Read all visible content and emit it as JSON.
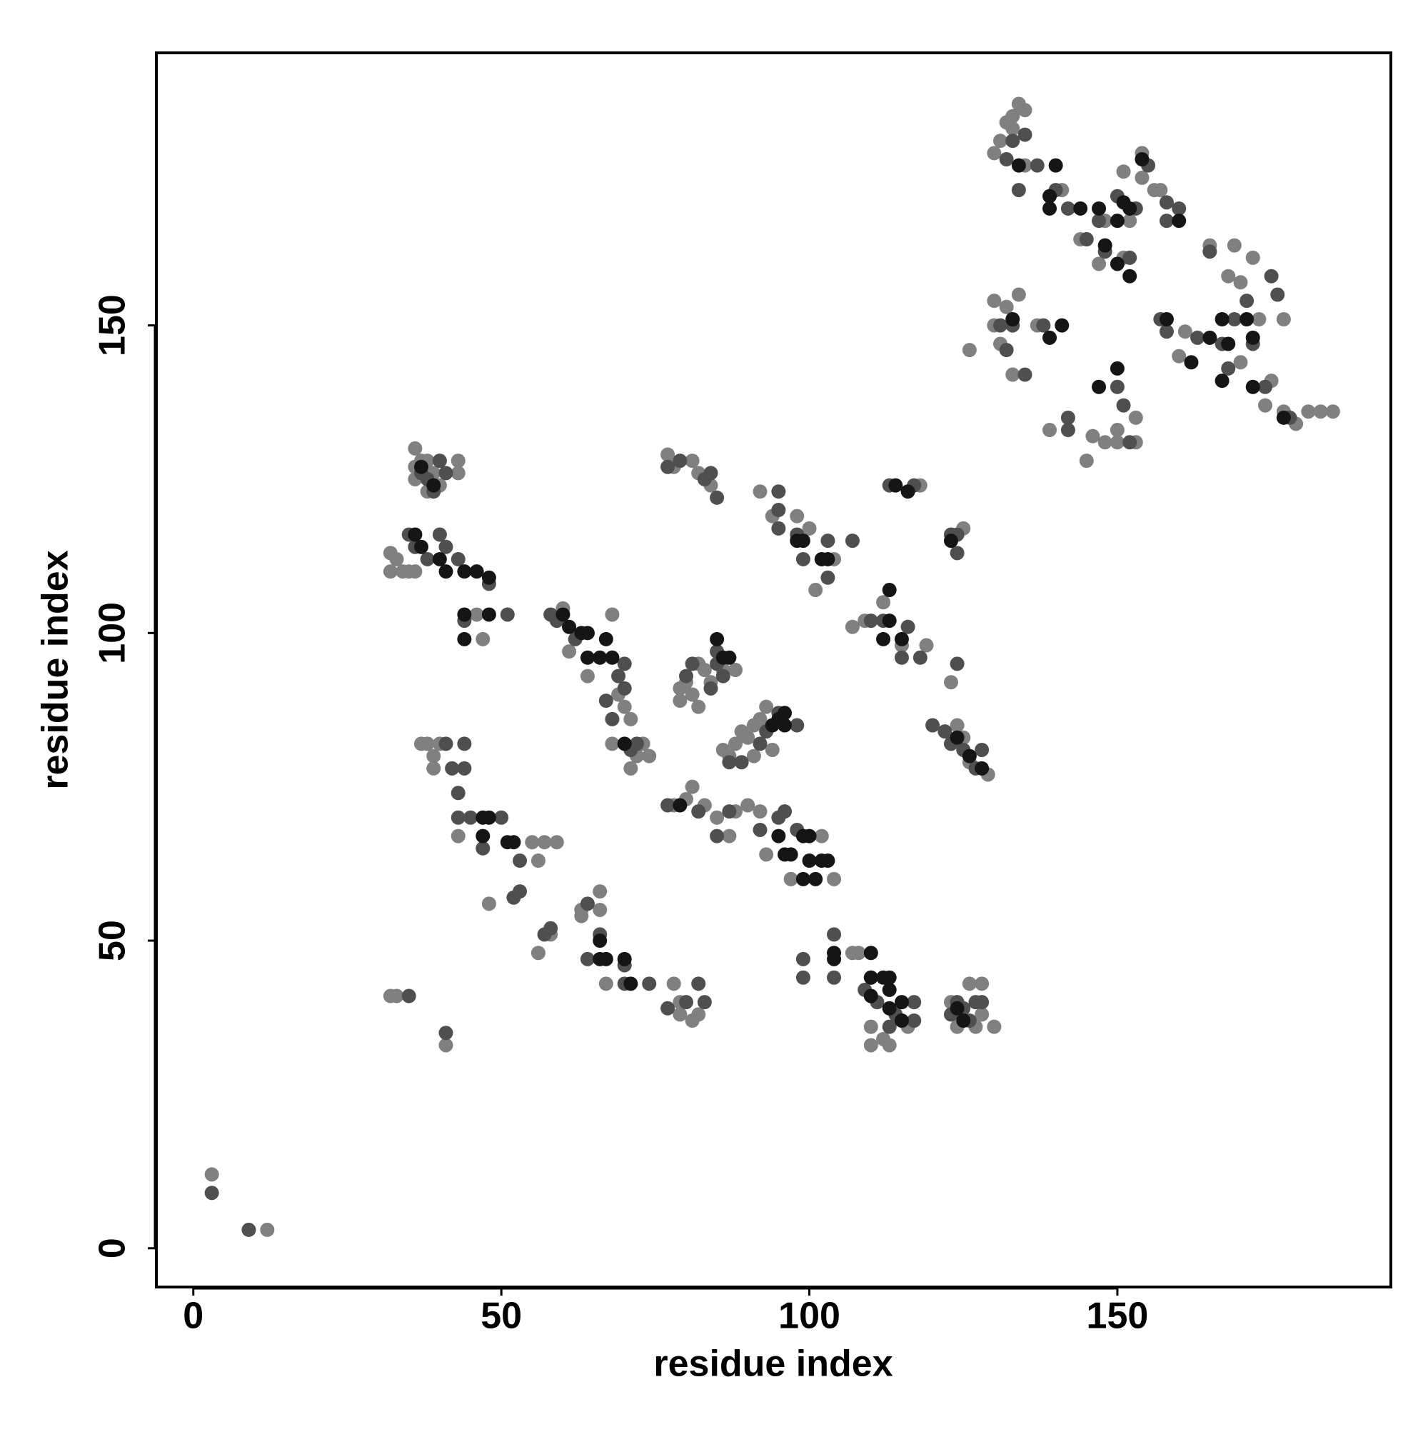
{
  "chart_data": {
    "type": "scatter",
    "xlabel": "residue index",
    "ylabel": "residue index",
    "xlim": [
      -6,
      194.4
    ],
    "ylim": [
      -6.3,
      194.3
    ],
    "xticks": [
      0,
      50,
      100,
      150
    ],
    "yticks": [
      0,
      50,
      100,
      150
    ],
    "grid": false,
    "series": [
      {
        "color": "#808080",
        "x": [
          3,
          12,
          36,
          36,
          36,
          37,
          38,
          39,
          40,
          43,
          43,
          38,
          32,
          32,
          33,
          34,
          35,
          36,
          46,
          47,
          37,
          38,
          39,
          40,
          39,
          43,
          55,
          57,
          59,
          56,
          48,
          56,
          58,
          63,
          63,
          66,
          66,
          67,
          78,
          79,
          81,
          82,
          79,
          32,
          33,
          41,
          60,
          61,
          64,
          68,
          68,
          69,
          70,
          71,
          72,
          73,
          74,
          71,
          79,
          79,
          80,
          81,
          82,
          82,
          83,
          84,
          86,
          88,
          86,
          87,
          88,
          89,
          90,
          91,
          92,
          93,
          94,
          91,
          78,
          80,
          81,
          83,
          85,
          87,
          88,
          90,
          92,
          93,
          97,
          104,
          102,
          107,
          108,
          110,
          110,
          110,
          112,
          113,
          116,
          123,
          124,
          126,
          127,
          128,
          128,
          130,
          92,
          94,
          98,
          100,
          101,
          104,
          77,
          78,
          81,
          82,
          84,
          118,
          125,
          107,
          109,
          112,
          115,
          119,
          123,
          124,
          125,
          126,
          129,
          130,
          130,
          131,
          132,
          133,
          134,
          126,
          137,
          139,
          145,
          146,
          148,
          150,
          150,
          153,
          153,
          130,
          131,
          132,
          133,
          134,
          135,
          133,
          135,
          141,
          144,
          147,
          148,
          151,
          151,
          152,
          154,
          156,
          157,
          154,
          160,
          161,
          165,
          168,
          169,
          170,
          172,
          170,
          173,
          177,
          177,
          179,
          181,
          183,
          185,
          174,
          175
        ],
        "values": [
          12,
          3,
          130,
          127,
          125,
          128,
          128,
          126,
          124,
          128,
          126,
          123,
          113,
          110,
          112,
          110,
          110,
          110,
          103,
          99,
          82,
          82,
          80,
          82,
          78,
          67,
          66,
          66,
          66,
          63,
          56,
          48,
          51,
          55,
          54,
          58,
          55,
          43,
          43,
          40,
          37,
          38,
          38,
          41,
          41,
          33,
          104,
          97,
          93,
          103,
          82,
          90,
          88,
          86,
          80,
          82,
          80,
          78,
          91,
          89,
          92,
          90,
          88,
          95,
          94,
          92,
          94,
          94,
          81,
          80,
          82,
          84,
          83,
          85,
          86,
          88,
          81,
          80,
          72,
          73,
          75,
          72,
          70,
          67,
          71,
          72,
          71,
          64,
          60,
          60,
          67,
          48,
          48,
          44,
          36,
          33,
          34,
          33,
          36,
          40,
          36,
          43,
          36,
          43,
          38,
          36,
          123,
          119,
          119,
          117,
          107,
          112,
          129,
          127,
          128,
          126,
          124,
          124,
          117,
          101,
          102,
          105,
          98,
          98,
          92,
          85,
          83,
          79,
          77,
          154,
          150,
          147,
          153,
          142,
          155,
          146,
          150,
          133,
          128,
          132,
          131,
          131,
          133,
          135,
          131,
          178,
          180,
          183,
          184,
          186,
          185,
          182,
          176,
          172,
          164,
          160,
          167,
          175,
          161,
          167,
          174,
          172,
          172,
          178,
          145,
          149,
          163,
          158,
          163,
          157,
          161,
          144,
          151,
          151,
          136,
          134,
          136,
          136,
          136,
          137,
          141
        ]
      },
      {
        "color": "#4f4f4f",
        "x": [
          3,
          9,
          37,
          38,
          39,
          40,
          41,
          35,
          36,
          38,
          40,
          41,
          43,
          48,
          44,
          51,
          41,
          44,
          42,
          44,
          43,
          43,
          45,
          47,
          50,
          53,
          53,
          52,
          57,
          58,
          64,
          64,
          66,
          70,
          70,
          74,
          77,
          80,
          82,
          83,
          35,
          41,
          58,
          59,
          62,
          67,
          68,
          69,
          70,
          70,
          71,
          72,
          80,
          81,
          84,
          86,
          85,
          85,
          87,
          89,
          92,
          93,
          95,
          98,
          77,
          82,
          85,
          87,
          92,
          95,
          98,
          96,
          99,
          99,
          104,
          104,
          109,
          111,
          113,
          114,
          117,
          117,
          123,
          124,
          125,
          126,
          127,
          128,
          95,
          95,
          95,
          98,
          99,
          103,
          103,
          107,
          77,
          79,
          84,
          85,
          83,
          113,
          117,
          123,
          124,
          124,
          110,
          112,
          115,
          116,
          118,
          124,
          120,
          122,
          123,
          125,
          127,
          128,
          131,
          133,
          135,
          138,
          132,
          142,
          142,
          150,
          151,
          152,
          132,
          133,
          135,
          134,
          137,
          140,
          142,
          145,
          147,
          148,
          150,
          152,
          153,
          155,
          158,
          160,
          158,
          157,
          158,
          163,
          165,
          167,
          168,
          169,
          171,
          175,
          176,
          172,
          174,
          178
        ],
        "values": [
          9,
          3,
          126,
          125,
          123,
          128,
          126,
          116,
          114,
          112,
          116,
          114,
          112,
          108,
          102,
          103,
          82,
          82,
          78,
          78,
          74,
          70,
          70,
          65,
          70,
          63,
          58,
          57,
          51,
          52,
          56,
          47,
          51,
          46,
          43,
          43,
          39,
          40,
          43,
          40,
          41,
          35,
          103,
          102,
          99,
          89,
          86,
          93,
          95,
          91,
          81,
          82,
          93,
          95,
          91,
          93,
          95,
          97,
          79,
          79,
          82,
          84,
          87,
          85,
          72,
          71,
          67,
          71,
          68,
          70,
          68,
          71,
          47,
          44,
          51,
          44,
          42,
          40,
          36,
          38,
          40,
          37,
          38,
          40,
          39,
          37,
          40,
          40,
          123,
          120,
          117,
          116,
          112,
          115,
          109,
          115,
          127,
          128,
          126,
          122,
          125,
          124,
          124,
          116,
          116,
          113,
          102,
          102,
          96,
          101,
          96,
          95,
          85,
          84,
          82,
          81,
          78,
          81,
          150,
          150,
          142,
          150,
          146,
          135,
          133,
          140,
          137,
          131,
          177,
          180,
          181,
          172,
          176,
          172,
          169,
          164,
          167,
          162,
          171,
          161,
          169,
          176,
          170,
          169,
          167,
          151,
          149,
          148,
          162,
          147,
          143,
          151,
          154,
          158,
          155,
          147,
          140,
          135
        ]
      },
      {
        "color": "#151515",
        "x": [
          37,
          39,
          36,
          37,
          40,
          41,
          44,
          46,
          48,
          44,
          48,
          44,
          47,
          48,
          47,
          52,
          51,
          66,
          66,
          67,
          70,
          71,
          60,
          61,
          63,
          64,
          64,
          66,
          67,
          68,
          70,
          85,
          86,
          87,
          94,
          95,
          96,
          96,
          79,
          95,
          96,
          97,
          99,
          100,
          100,
          99,
          101,
          102,
          103,
          104,
          104,
          110,
          110,
          112,
          113,
          110,
          113,
          113,
          115,
          115,
          124,
          125,
          98,
          99,
          102,
          103,
          114,
          116,
          123,
          112,
          113,
          113,
          115,
          124,
          126,
          128,
          133,
          139,
          141,
          150,
          147,
          134,
          140,
          139,
          139,
          144,
          147,
          148,
          150,
          150,
          151,
          152,
          152,
          154,
          160,
          158,
          162,
          165,
          167,
          167,
          168,
          171,
          172,
          172,
          177
        ],
        "values": [
          127,
          124,
          116,
          114,
          112,
          110,
          110,
          110,
          109,
          103,
          103,
          99,
          70,
          70,
          67,
          66,
          66,
          50,
          47,
          47,
          47,
          43,
          103,
          101,
          100,
          100,
          96,
          96,
          99,
          96,
          82,
          99,
          96,
          96,
          85,
          86,
          87,
          85,
          72,
          67,
          64,
          64,
          67,
          67,
          63,
          60,
          60,
          63,
          63,
          48,
          47,
          48,
          44,
          44,
          44,
          41,
          42,
          39,
          40,
          37,
          39,
          37,
          115,
          115,
          112,
          112,
          124,
          123,
          115,
          99,
          107,
          102,
          99,
          83,
          80,
          78,
          151,
          148,
          150,
          143,
          140,
          176,
          176,
          171,
          169,
          169,
          169,
          163,
          167,
          160,
          170,
          169,
          158,
          177,
          167,
          151,
          144,
          148,
          151,
          141,
          147,
          151,
          148,
          140,
          135
        ]
      }
    ]
  }
}
